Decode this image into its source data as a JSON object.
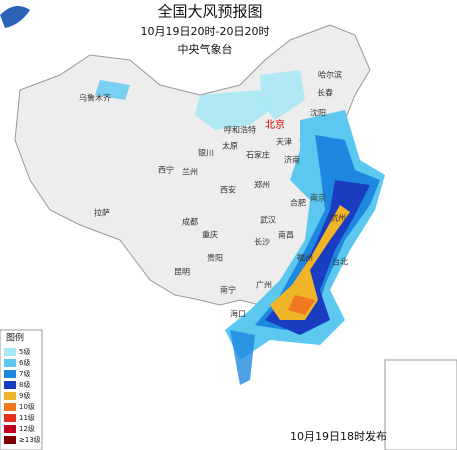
{
  "header": {
    "title": "全国大风预报图",
    "period": "10月19日20时-20日20时",
    "issuer": "中央气象台"
  },
  "cities": [
    "乌鲁木齐",
    "哈尔滨",
    "长春",
    "沈阳",
    "北京",
    "天津",
    "呼和浩特",
    "太原",
    "石家庄",
    "济南",
    "银川",
    "兰州",
    "西宁",
    "郑州",
    "西安",
    "合肥",
    "南京",
    "杭州",
    "武汉",
    "成都",
    "重庆",
    "长沙",
    "南昌",
    "福州",
    "台北",
    "贵阳",
    "昆明",
    "拉萨",
    "南宁",
    "广州",
    "海口"
  ],
  "legend": {
    "title": "图例",
    "items": [
      {
        "label": "5级",
        "color": "#a8e8f4"
      },
      {
        "label": "6级",
        "color": "#5cc8f0"
      },
      {
        "label": "7级",
        "color": "#1e88e0"
      },
      {
        "label": "8级",
        "color": "#1a3cc0"
      },
      {
        "label": "9级",
        "color": "#f0b428"
      },
      {
        "label": "10级",
        "color": "#f07820"
      },
      {
        "label": "11级",
        "color": "#e03020"
      },
      {
        "label": "12级",
        "color": "#c00020"
      },
      {
        "label": "≥13级",
        "color": "#800000"
      }
    ]
  },
  "footer": "10月19日18时发布"
}
